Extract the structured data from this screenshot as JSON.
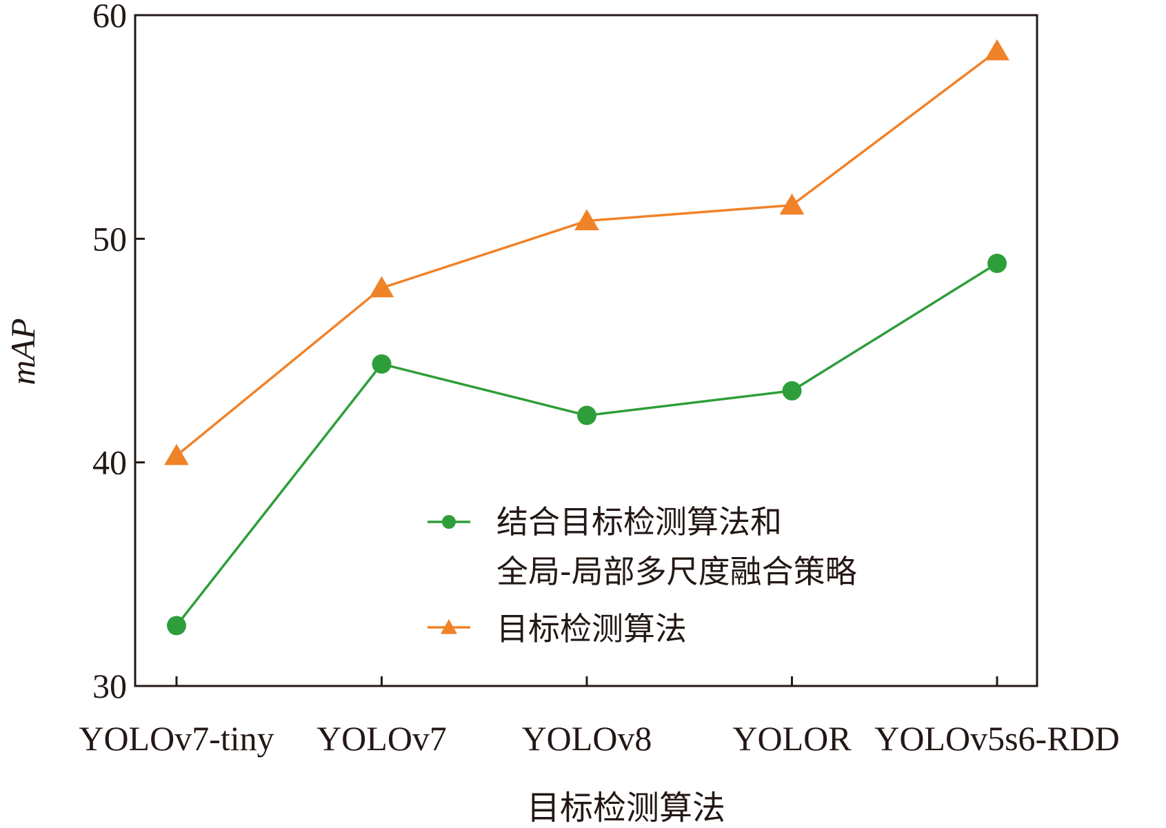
{
  "chart_data": {
    "type": "line",
    "title": "",
    "xlabel": "目标检测算法",
    "ylabel": "mAP",
    "categories": [
      "YOLOv7-tiny",
      "YOLOv7",
      "YOLOv8",
      "YOLOR",
      "YOLOv5s6-RDD"
    ],
    "ylim": [
      30,
      60
    ],
    "yticks": [
      30,
      40,
      50,
      60
    ],
    "grid": false,
    "legend_position": "lower-right",
    "series": [
      {
        "name": "结合目标检测算法和全局-局部多尺度融合策略",
        "name_lines": [
          "结合目标检测算法和",
          "全局-局部多尺度融合策略"
        ],
        "marker": "circle",
        "color": "#2e9e3a",
        "values": [
          32.7,
          44.4,
          42.1,
          43.2,
          48.9
        ]
      },
      {
        "name": "目标检测算法",
        "name_lines": [
          "目标检测算法"
        ],
        "marker": "triangle",
        "color": "#f08228",
        "values": [
          40.3,
          47.8,
          50.8,
          51.5,
          58.4
        ]
      }
    ]
  }
}
